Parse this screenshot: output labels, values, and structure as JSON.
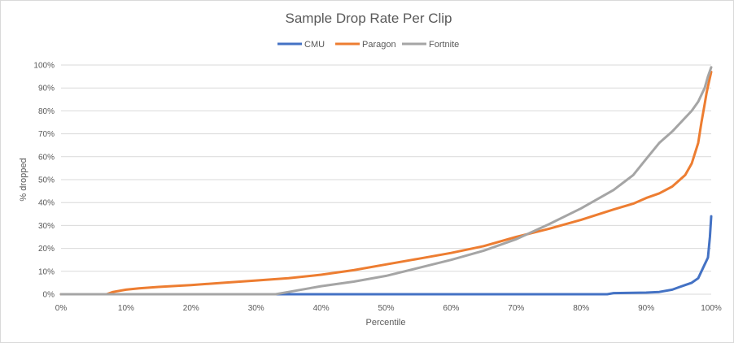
{
  "chart_data": {
    "type": "line",
    "title": "Sample Drop Rate Per Clip",
    "xlabel": "Percentile",
    "ylabel": "% dropped",
    "xlim": [
      0,
      100
    ],
    "ylim": [
      0,
      100
    ],
    "x_ticks": [
      "0%",
      "10%",
      "20%",
      "30%",
      "40%",
      "50%",
      "60%",
      "70%",
      "80%",
      "90%",
      "100%"
    ],
    "y_ticks": [
      "0%",
      "10%",
      "20%",
      "30%",
      "40%",
      "50%",
      "60%",
      "70%",
      "80%",
      "90%",
      "100%"
    ],
    "grid": true,
    "legend_position": "top",
    "series": [
      {
        "name": "CMU",
        "color": "#4472c4",
        "points": [
          [
            0,
            0
          ],
          [
            84,
            0
          ],
          [
            85,
            0.5
          ],
          [
            90,
            0.7
          ],
          [
            92,
            1
          ],
          [
            94,
            2
          ],
          [
            95,
            3
          ],
          [
            96,
            4
          ],
          [
            97,
            5
          ],
          [
            98,
            7
          ],
          [
            98.5,
            10
          ],
          [
            99,
            13
          ],
          [
            99.5,
            16
          ],
          [
            99.8,
            25
          ],
          [
            100,
            34
          ]
        ]
      },
      {
        "name": "Paragon",
        "color": "#ed7d31",
        "points": [
          [
            0,
            0
          ],
          [
            7,
            0
          ],
          [
            8,
            1
          ],
          [
            10,
            2
          ],
          [
            12,
            2.6
          ],
          [
            15,
            3.2
          ],
          [
            18,
            3.7
          ],
          [
            20,
            4
          ],
          [
            25,
            5
          ],
          [
            30,
            6
          ],
          [
            35,
            7
          ],
          [
            40,
            8.5
          ],
          [
            45,
            10.5
          ],
          [
            50,
            13
          ],
          [
            55,
            15.5
          ],
          [
            60,
            18
          ],
          [
            65,
            21
          ],
          [
            70,
            25
          ],
          [
            75,
            28.5
          ],
          [
            80,
            32.5
          ],
          [
            85,
            37
          ],
          [
            88,
            39.5
          ],
          [
            90,
            42
          ],
          [
            92,
            44
          ],
          [
            94,
            47
          ],
          [
            96,
            52
          ],
          [
            97,
            57
          ],
          [
            98,
            66
          ],
          [
            98.5,
            75
          ],
          [
            99,
            83
          ],
          [
            99.3,
            88
          ],
          [
            99.6,
            92
          ],
          [
            100,
            97
          ]
        ]
      },
      {
        "name": "Fortnite",
        "color": "#a5a5a5",
        "points": [
          [
            0,
            0
          ],
          [
            33,
            0
          ],
          [
            35,
            1
          ],
          [
            40,
            3.5
          ],
          [
            45,
            5.5
          ],
          [
            50,
            8
          ],
          [
            55,
            11.5
          ],
          [
            60,
            15
          ],
          [
            65,
            19
          ],
          [
            70,
            24
          ],
          [
            75,
            30.5
          ],
          [
            80,
            37.5
          ],
          [
            85,
            45.5
          ],
          [
            88,
            52
          ],
          [
            90,
            59
          ],
          [
            92,
            66
          ],
          [
            94,
            71
          ],
          [
            96,
            77
          ],
          [
            97,
            80
          ],
          [
            98,
            84
          ],
          [
            99,
            90
          ],
          [
            99.5,
            95
          ],
          [
            100,
            99
          ]
        ]
      }
    ]
  }
}
